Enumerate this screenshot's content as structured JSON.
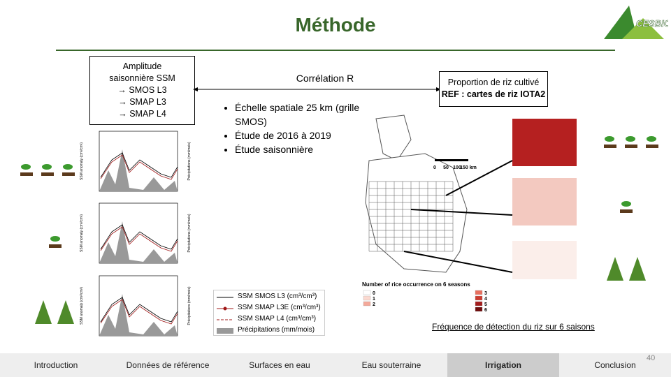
{
  "header": {
    "title": "Méthode",
    "logo": "CESBIO"
  },
  "left_box": {
    "lines": [
      "Amplitude",
      "saisonnière SSM",
      "→ SMOS L3",
      "→ SMAP L3",
      "→ SMAP L4"
    ]
  },
  "link_label": "Corrélation R",
  "right_box": {
    "line1": "Proportion de riz cultivé",
    "line2": "REF : cartes de riz IOTA2"
  },
  "bullets": [
    "Échelle spatiale 25 km (grille SMOS)",
    "Étude de 2016 à 2019",
    "Étude saisonnière"
  ],
  "charts": {
    "y_label": "SSM anomaly (cm³/cm³)",
    "y2_label": "Précipitations (mm/mois)"
  },
  "legend": [
    "SSM SMOS L3 (cm³/cm³)",
    "SSM SMAP L3E (cm³/cm³)",
    "SSM SMAP L4 (cm³/cm³)",
    "Précipitations (mm/mois)"
  ],
  "map": {
    "scale": [
      "0",
      "50",
      "100",
      "150 km"
    ],
    "legend_title": "Number of rice occurrence on 6 seasons",
    "classes": [
      "0",
      "1",
      "2",
      "3",
      "4",
      "5",
      "6"
    ]
  },
  "caption": "Fréquence de détection du riz sur 6 saisons",
  "nav": {
    "items": [
      "Introduction",
      "Données de référence",
      "Surfaces en eau",
      "Eau souterraine",
      "Irrigation",
      "Conclusion"
    ],
    "active": 4
  },
  "page_number": "40"
}
